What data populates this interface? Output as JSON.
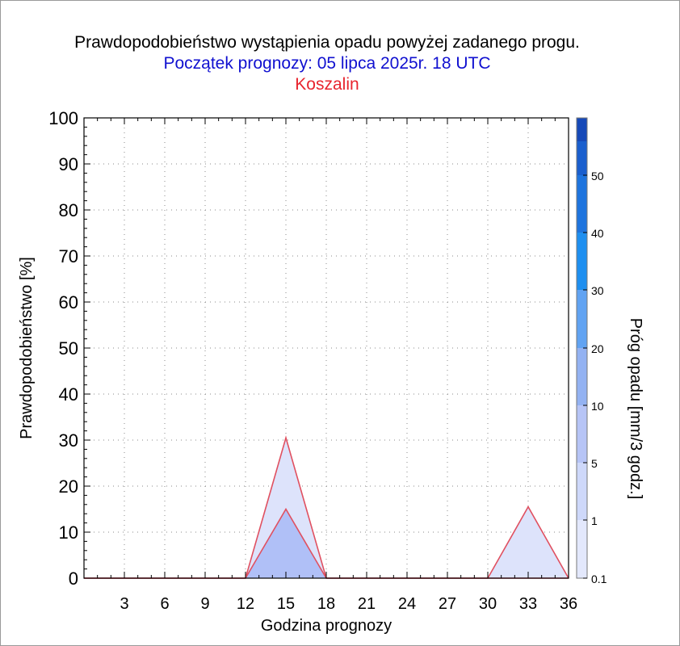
{
  "title_lines": [
    "Prawdopodobieństwo wystąpienia opadu powyżej zadanego progu.",
    "Początek prognozy: 05 lipca 2025r. 18 UTC",
    "Koszalin"
  ],
  "colors": {
    "title": "#000000",
    "subtitle": "#1010d0",
    "location": "#e8242e",
    "outline": "#e05060"
  },
  "chart_data": {
    "type": "area",
    "title": "Prawdopodobieństwo wystąpienia opadu powyżej zadanego progu.",
    "subtitle": "Początek prognozy: 05 lipca 2025r. 18 UTC",
    "location": "Koszalin",
    "xlabel": "Godzina prognozy",
    "ylabel": "Prawdopodobieństwo [%]",
    "y2label": "Próg opadu [mm/3 godz.]",
    "xlim": [
      0,
      36
    ],
    "ylim": [
      0,
      100
    ],
    "x_ticks": [
      "3",
      "6",
      "9",
      "12",
      "15",
      "18",
      "21",
      "24",
      "27",
      "30",
      "33",
      "36"
    ],
    "y_ticks": [
      "0",
      "10",
      "20",
      "30",
      "40",
      "50",
      "60",
      "70",
      "80",
      "90",
      "100"
    ],
    "grid": true,
    "x": [
      0,
      3,
      6,
      9,
      12,
      15,
      18,
      21,
      24,
      27,
      30,
      33,
      36
    ],
    "series": [
      {
        "threshold": 0.1,
        "color": "#dde3fb",
        "values": [
          0,
          0,
          0,
          0,
          0,
          30.5,
          0,
          0,
          0,
          0,
          0,
          15.5,
          0
        ]
      },
      {
        "threshold": 1,
        "color": "#b0c0f7",
        "values": [
          0,
          0,
          0,
          0,
          0,
          15,
          0,
          0,
          0,
          0,
          0,
          0,
          0
        ]
      }
    ],
    "colorbar": {
      "labels": [
        "0.1",
        "1",
        "5",
        "10",
        "20",
        "30",
        "40",
        "50"
      ],
      "colors": [
        "#e3e8fc",
        "#ced8fa",
        "#b6c4f6",
        "#93b2f2",
        "#61a3f2",
        "#1e8ff0",
        "#1e74de",
        "#1a5fce",
        "#1649b8"
      ]
    }
  }
}
